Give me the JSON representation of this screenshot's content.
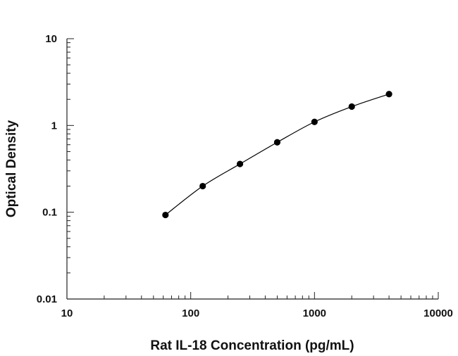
{
  "chart_data": {
    "type": "scatter",
    "title": "",
    "xlabel": "Rat IL-18 Concentration (pg/mL)",
    "ylabel": "Optical Density",
    "xscale": "log",
    "yscale": "log",
    "xlim": [
      10,
      10000
    ],
    "ylim": [
      0.01,
      10
    ],
    "x_tick_labels": [
      "10",
      "100",
      "1000",
      "10000"
    ],
    "y_tick_labels": [
      "0.01",
      "0.1",
      "1",
      "10"
    ],
    "grid": false,
    "legend": "none",
    "fit_curve": true,
    "series": [
      {
        "x": [
          62.5,
          125,
          250,
          500,
          1000,
          2000,
          4000
        ],
        "y": [
          0.093,
          0.2,
          0.36,
          0.64,
          1.1,
          1.65,
          2.3
        ]
      }
    ],
    "point_color": "#000000",
    "line_color": "#000000"
  }
}
